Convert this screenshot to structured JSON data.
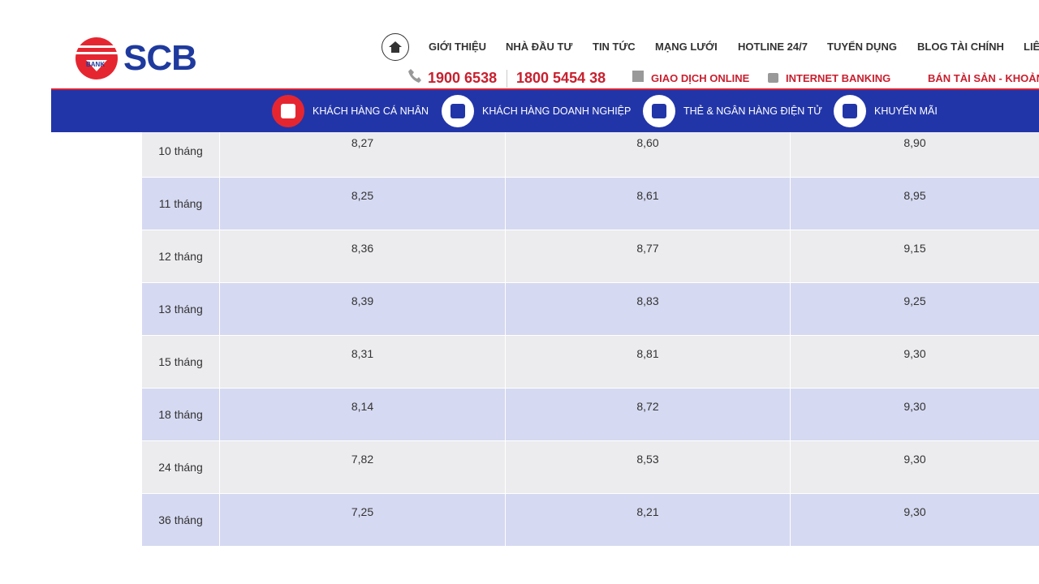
{
  "header": {
    "logo": {
      "text": "SCB",
      "sub": "BANK"
    },
    "nav": [
      "GIỚI THIỆU",
      "NHÀ ĐẦU TƯ",
      "TIN TỨC",
      "MẠNG LƯỚI",
      "HOTLINE 24/7",
      "TUYỂN DỤNG",
      "BLOG TÀI CHÍNH",
      "LIÊ"
    ],
    "phones": [
      "1900 6538",
      "1800 5454 38"
    ],
    "links": [
      "GIAO DỊCH ONLINE",
      "INTERNET BANKING",
      "BÁN TÀI SẢN - KHOẢN"
    ]
  },
  "subnav": [
    "KHÁCH HÀNG CÁ NHÂN",
    "KHÁCH HÀNG DOANH NGHIỆP",
    "THẺ & NGÂN HÀNG ĐIỆN TỬ",
    "KHUYẾN MÃI"
  ],
  "table": {
    "rows": [
      [
        "10 tháng",
        "8,27",
        "8,60",
        "8,90"
      ],
      [
        "11 tháng",
        "8,25",
        "8,61",
        "8,95"
      ],
      [
        "12 tháng",
        "8,36",
        "8,77",
        "9,15"
      ],
      [
        "13 tháng",
        "8,39",
        "8,83",
        "9,25"
      ],
      [
        "15 tháng",
        "8,31",
        "8,81",
        "9,30"
      ],
      [
        "18 tháng",
        "8,14",
        "8,72",
        "9,30"
      ],
      [
        "24 tháng",
        "7,82",
        "8,53",
        "9,30"
      ],
      [
        "36 tháng",
        "7,25",
        "8,21",
        "9,30"
      ]
    ]
  }
}
